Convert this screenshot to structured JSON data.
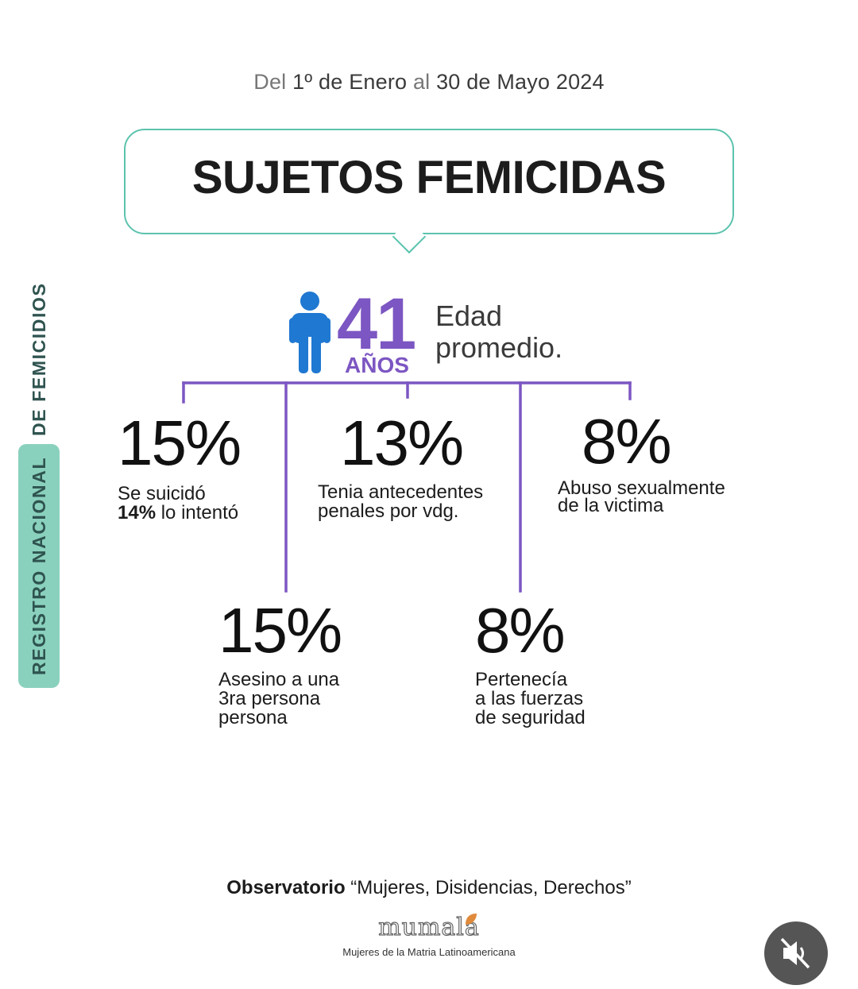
{
  "header": {
    "date_del": "Del",
    "date_part1": "1º de Enero",
    "date_al": "al",
    "date_part2": "30 de Mayo 2024",
    "title": "SUJETOS FEMICIDAS"
  },
  "side_label": {
    "part1": "REGISTRO NACIONAL",
    "part2": "DE FEMICIDIOS"
  },
  "average_age": {
    "value": "41",
    "unit": "AÑOS",
    "label_line1": "Edad",
    "label_line2": "promedio."
  },
  "stats": [
    {
      "value": "15%",
      "line1": "Se suicidó",
      "line2_bold": "14%",
      "line2_rest": " lo intentó"
    },
    {
      "value": "13%",
      "line1": "Tenia antecedentes",
      "line2": "penales por vdg."
    },
    {
      "value": "8%",
      "line1": "Abuso sexualmente",
      "line2": "de la victima"
    },
    {
      "value": "15%",
      "line1": "Asesino a una",
      "line2": "3ra persona",
      "line3": "persona"
    },
    {
      "value": "8%",
      "line1": "Pertenecía",
      "line2": "a las fuerzas",
      "line3": "de seguridad"
    }
  ],
  "footer": {
    "observatorio_bold": "Observatorio",
    "observatorio_rest": " “Mujeres, Disidencias, Derechos”",
    "logo": "mumalá",
    "logo_subtitle": "Mujeres de la Matria Latinoamericana"
  },
  "colors": {
    "accent_teal": "#5cc3ae",
    "accent_purple": "#7c56c2",
    "person_blue": "#1f78d1"
  },
  "icons": {
    "person": "person-icon",
    "mute": "speaker-muted-icon"
  }
}
